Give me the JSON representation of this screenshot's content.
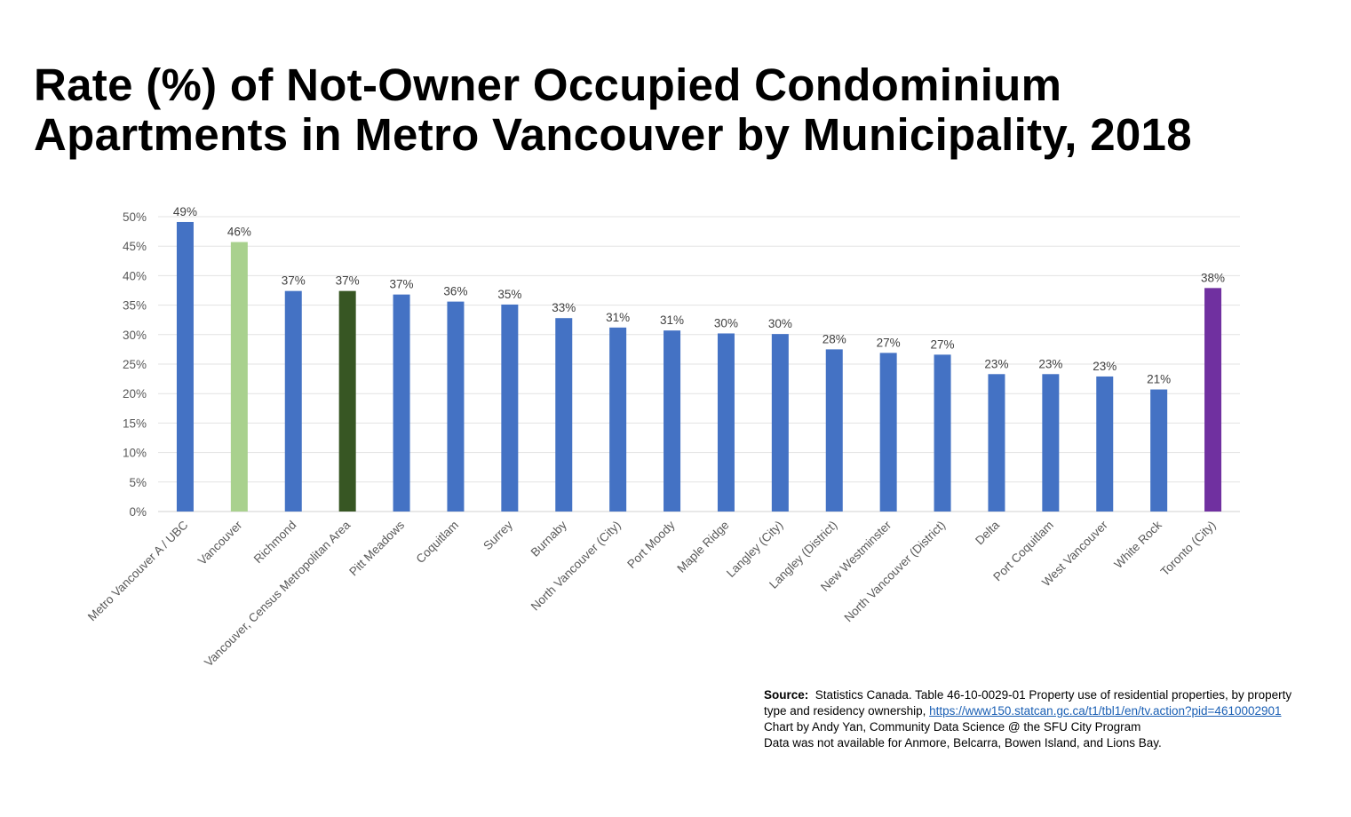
{
  "chart_data": {
    "type": "bar",
    "title": "Rate (%) of Not-Owner Occupied Condominium Apartments in Metro Vancouver by Municipality, 2018",
    "title_lines": [
      "Rate (%) of Not-Owner Occupied Condominium",
      "Apartments in Metro Vancouver by Municipality, 2018"
    ],
    "xlabel": "",
    "ylabel": "",
    "ylim": [
      0,
      50
    ],
    "yticks": [
      "0%",
      "5%",
      "10%",
      "15%",
      "20%",
      "25%",
      "30%",
      "35%",
      "40%",
      "45%",
      "50%"
    ],
    "grid": true,
    "categories": [
      "Metro Vancouver A / UBC",
      "Vancouver",
      "Richmond",
      "Vancouver, Census Metropolitan Area",
      "Pitt Meadows",
      "Coquitlam",
      "Surrey",
      "Burnaby",
      "North Vancouver (City)",
      "Port Moody",
      "Maple Ridge",
      "Langley (City)",
      "Langley (District)",
      "New Westminster",
      "North Vancouver (District)",
      "Delta",
      "Port Coquitlam",
      "West Vancouver",
      "White Rock",
      "Toronto (City)"
    ],
    "values": [
      49.1,
      45.7,
      37.4,
      37.4,
      36.8,
      35.6,
      35.1,
      32.8,
      31.2,
      30.7,
      30.2,
      30.1,
      27.5,
      26.9,
      26.6,
      23.3,
      23.3,
      22.9,
      20.7,
      37.9
    ],
    "data_labels": [
      "49%",
      "46%",
      "37%",
      "37%",
      "37%",
      "36%",
      "35%",
      "33%",
      "31%",
      "31%",
      "30%",
      "30%",
      "28%",
      "27%",
      "27%",
      "23%",
      "23%",
      "23%",
      "21%",
      "38%"
    ],
    "colors": [
      "#4472c4",
      "#a9d18e",
      "#4472c4",
      "#375623",
      "#4472c4",
      "#4472c4",
      "#4472c4",
      "#4472c4",
      "#4472c4",
      "#4472c4",
      "#4472c4",
      "#4472c4",
      "#4472c4",
      "#4472c4",
      "#4472c4",
      "#4472c4",
      "#4472c4",
      "#4472c4",
      "#4472c4",
      "#7030a0"
    ]
  },
  "source": {
    "label": "Source:",
    "line1": "Statistics Canada. Table 46-10-0029-01 Property use of residential properties, by property",
    "line2_text": "type and residency ownership,",
    "link": "https://www150.statcan.gc.ca/t1/tbl1/en/tv.action?pid=4610002901",
    "line3": "Chart by Andy Yan, Community Data Science @ the SFU City Program",
    "line4": "Data was not available for Anmore, Belcarra, Bowen Island, and Lions Bay."
  }
}
